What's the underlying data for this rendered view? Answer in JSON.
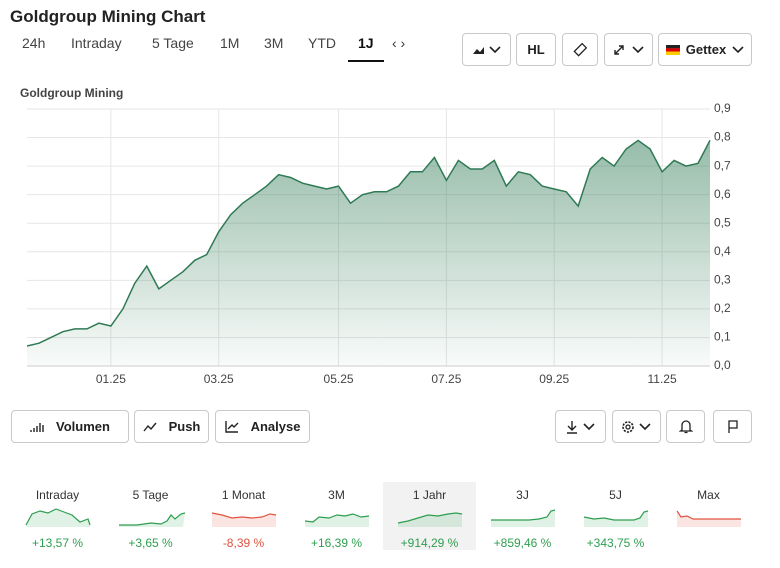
{
  "header": {
    "title": "Goldgroup Mining Chart"
  },
  "tabs": {
    "items": [
      "24h",
      "Intraday",
      "5 Tage",
      "1M",
      "3M",
      "YTD",
      "1J"
    ],
    "active": 6
  },
  "toolbar": {
    "hl": "HL",
    "exchange": "Gettex"
  },
  "chart_data": {
    "type": "area",
    "title": "Goldgroup Mining",
    "color": "#2f7a55",
    "categories": [
      null,
      null,
      null,
      null,
      null,
      null,
      null,
      "01.25",
      null,
      null,
      null,
      null,
      null,
      null,
      null,
      null,
      "03.25",
      null,
      null,
      null,
      null,
      null,
      null,
      null,
      null,
      null,
      "05.25",
      null,
      null,
      null,
      null,
      null,
      null,
      null,
      null,
      "07.25",
      null,
      null,
      null,
      null,
      null,
      null,
      null,
      null,
      "09.25",
      null,
      null,
      null,
      null,
      null,
      null,
      null,
      null,
      "11.25",
      null,
      null,
      null,
      null
    ],
    "values": [
      0.07,
      0.08,
      0.1,
      0.12,
      0.13,
      0.13,
      0.15,
      0.14,
      0.2,
      0.29,
      0.35,
      0.27,
      0.3,
      0.33,
      0.37,
      0.39,
      0.47,
      0.53,
      0.57,
      0.6,
      0.63,
      0.67,
      0.66,
      0.64,
      0.63,
      0.62,
      0.63,
      0.57,
      0.6,
      0.61,
      0.61,
      0.63,
      0.68,
      0.68,
      0.73,
      0.65,
      0.72,
      0.69,
      0.69,
      0.72,
      0.63,
      0.68,
      0.67,
      0.63,
      0.62,
      0.61,
      0.56,
      0.69,
      0.73,
      0.7,
      0.76,
      0.79,
      0.76,
      0.68,
      0.72,
      0.7,
      0.71,
      0.79
    ],
    "ylim": [
      0,
      0.9
    ],
    "yticks": [
      {
        "value": 0,
        "label": "0,0"
      },
      {
        "value": 0.1,
        "label": "0,1"
      },
      {
        "value": 0.2,
        "label": "0,2"
      },
      {
        "value": 0.3,
        "label": "0,3"
      },
      {
        "value": 0.4,
        "label": "0,4"
      },
      {
        "value": 0.5,
        "label": "0,5"
      },
      {
        "value": 0.6,
        "label": "0,6"
      },
      {
        "value": 0.7,
        "label": "0,7"
      },
      {
        "value": 0.8,
        "label": "0,8"
      },
      {
        "value": 0.9,
        "label": "0,9"
      }
    ],
    "grid": true
  },
  "actions": {
    "items": [
      "Volumen",
      "Push",
      "Analyse"
    ]
  },
  "performance": {
    "active": 4,
    "items": [
      {
        "label": "Intraday",
        "change": "+13,57 %",
        "color": "#2e9e4f"
      },
      {
        "label": "5 Tage",
        "change": "+3,65 %",
        "color": "#2e9e4f"
      },
      {
        "label": "1 Monat",
        "change": "-8,39 %",
        "color": "#e0533f"
      },
      {
        "label": "3M",
        "change": "+16,39 %",
        "color": "#2e9e4f"
      },
      {
        "label": "1 Jahr",
        "change": "+914,29 %",
        "color": "#2e9e4f"
      },
      {
        "label": "3J",
        "change": "+859,46 %",
        "color": "#2e9e4f"
      },
      {
        "label": "5J",
        "change": "+343,75 %",
        "color": "#2e9e4f"
      },
      {
        "label": "Max",
        "change": "",
        "color": "#e0533f"
      }
    ]
  }
}
